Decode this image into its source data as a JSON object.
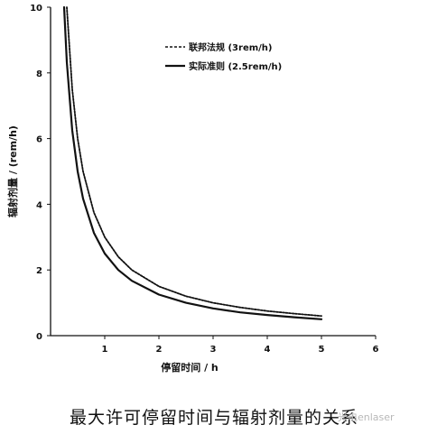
{
  "caption": "最大许可停留时间与辐射剂量的关系",
  "watermark": "光电enlaser",
  "chart_data": {
    "type": "line",
    "title": "",
    "xlabel": "停留时间 / h",
    "ylabel": "辐射剂量 / (rem/h)",
    "xlim": [
      0,
      6
    ],
    "ylim": [
      0,
      10
    ],
    "xticks": [
      1,
      2,
      3,
      4,
      5,
      6
    ],
    "yticks": [
      0,
      2,
      4,
      6,
      8,
      10
    ],
    "grid": false,
    "legend_position": "top-right",
    "series": [
      {
        "name": "联邦法规 (3rem/h)",
        "style": "dashed",
        "color": "#111111",
        "x": [
          0.3,
          0.4,
          0.5,
          0.6,
          0.8,
          1.0,
          1.25,
          1.5,
          2.0,
          2.5,
          3.0,
          3.5,
          4.0,
          4.5,
          5.0
        ],
        "y": [
          10.0,
          7.5,
          6.0,
          5.0,
          3.75,
          3.0,
          2.4,
          2.0,
          1.5,
          1.2,
          1.0,
          0.86,
          0.75,
          0.67,
          0.6
        ]
      },
      {
        "name": "实际准则 (2.5rem/h)",
        "style": "solid",
        "color": "#111111",
        "x": [
          0.25,
          0.3,
          0.4,
          0.5,
          0.6,
          0.8,
          1.0,
          1.25,
          1.5,
          2.0,
          2.5,
          3.0,
          3.5,
          4.0,
          4.5,
          5.0
        ],
        "y": [
          10.0,
          8.33,
          6.25,
          5.0,
          4.17,
          3.13,
          2.5,
          2.0,
          1.67,
          1.25,
          1.0,
          0.83,
          0.71,
          0.63,
          0.56,
          0.5
        ]
      }
    ]
  }
}
